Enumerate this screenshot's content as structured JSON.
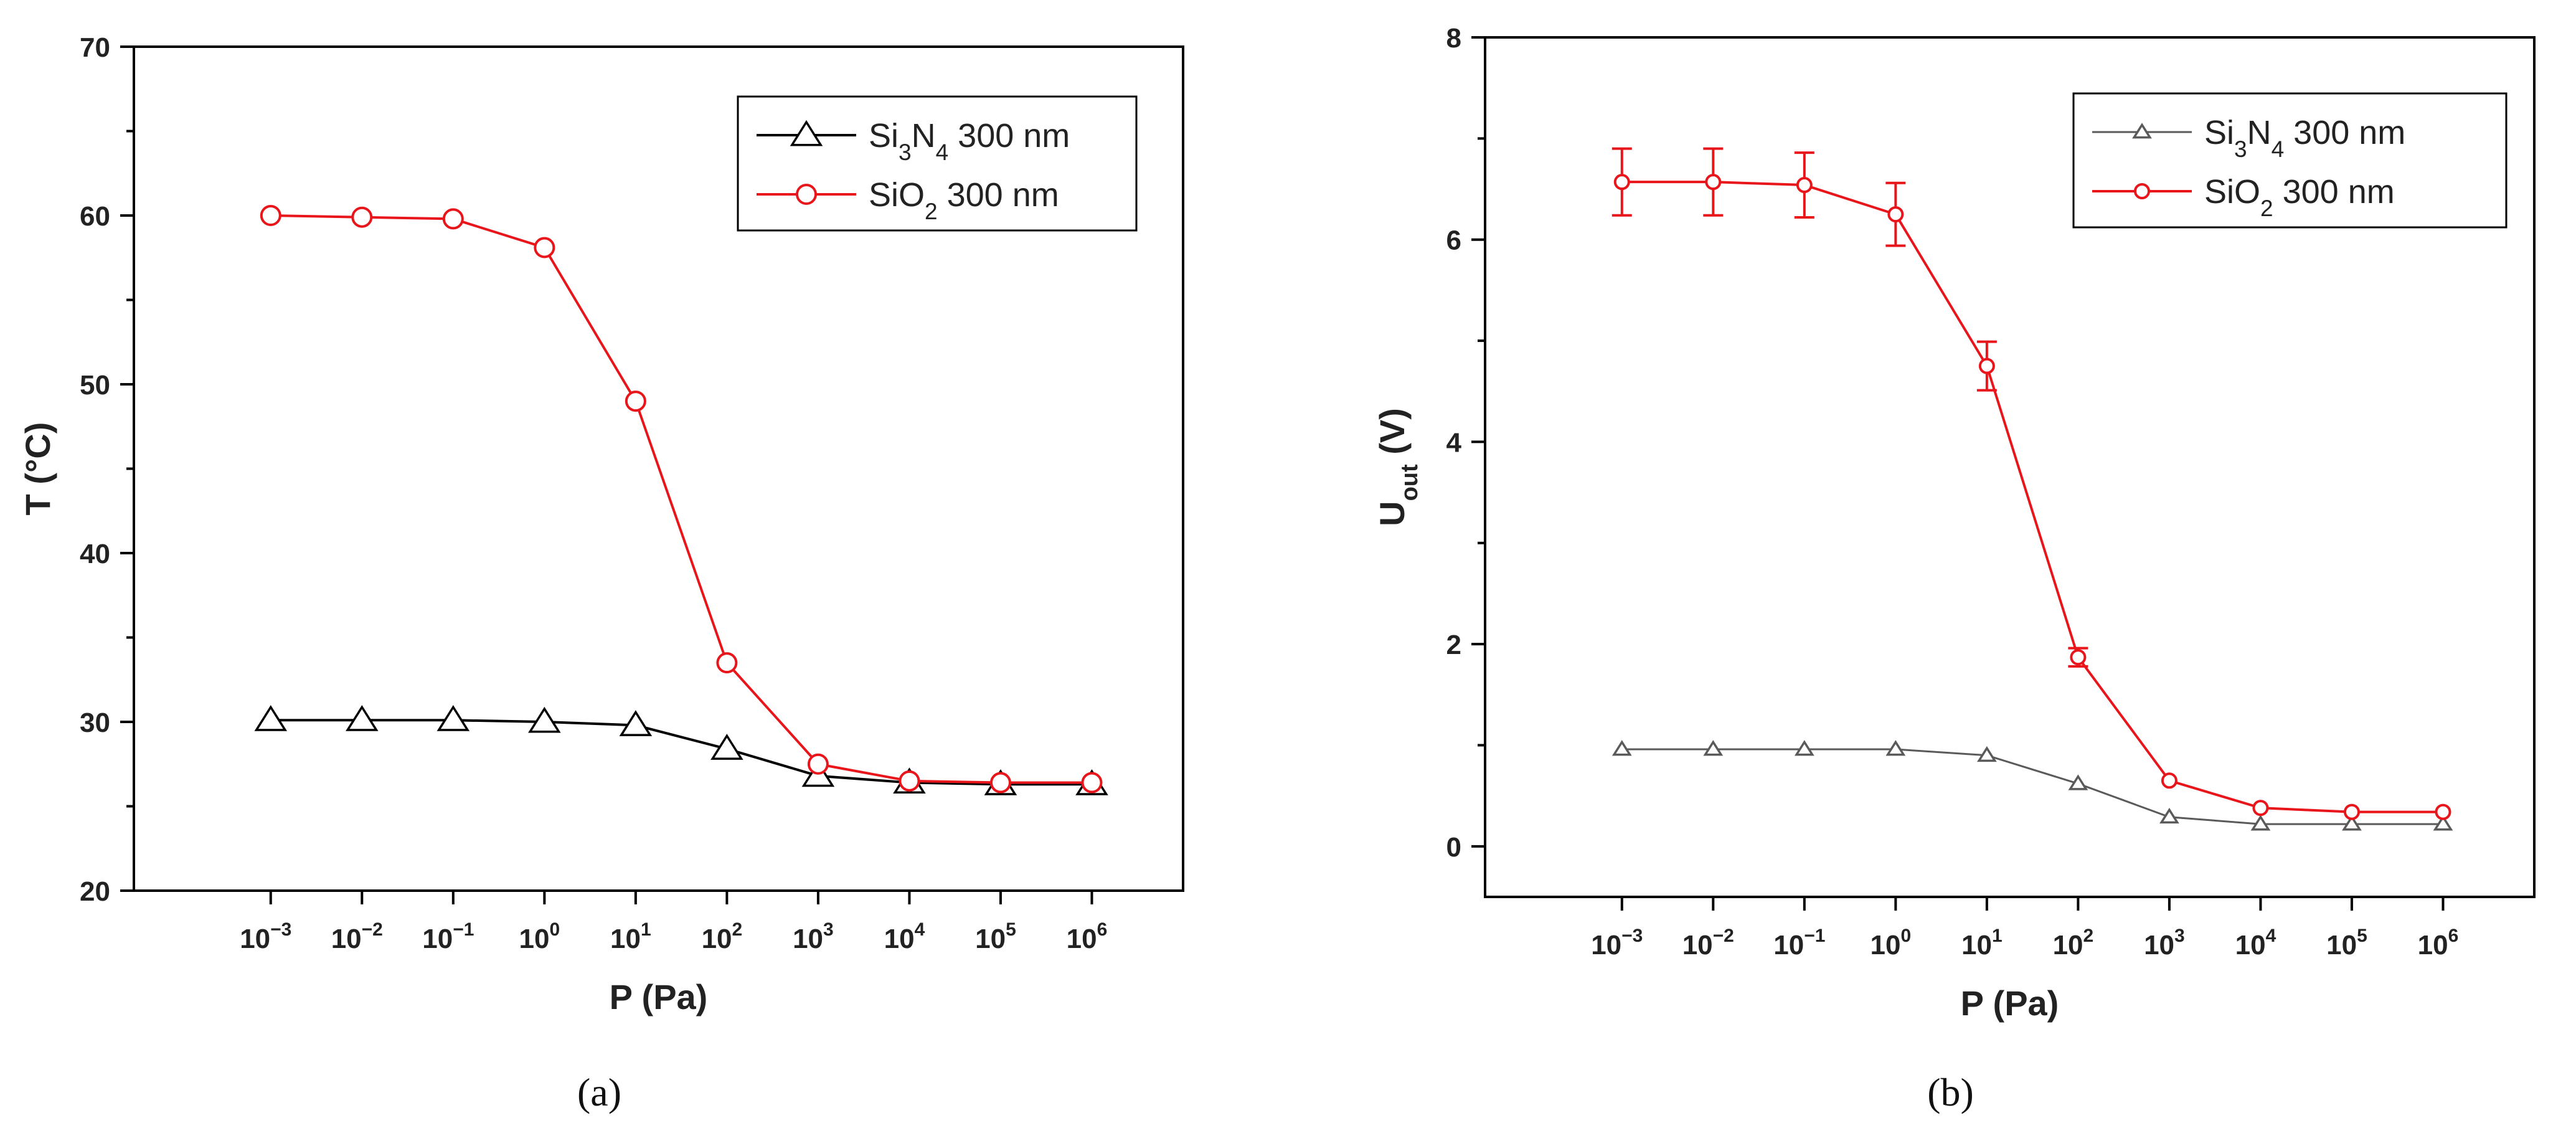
{
  "chart_data": [
    {
      "type": "line",
      "caption": "(a)",
      "xlabel": "P (Pa)",
      "ylabel": "T (°C)",
      "x_scale": "log",
      "x": [
        -3,
        -2,
        -1,
        0,
        1,
        2,
        3,
        4,
        5,
        6
      ],
      "x_tick_labels": [
        {
          "base": "10",
          "exp": "−3"
        },
        {
          "base": "10",
          "exp": "−2"
        },
        {
          "base": "10",
          "exp": "−1"
        },
        {
          "base": "10",
          "exp": "0"
        },
        {
          "base": "10",
          "exp": "1"
        },
        {
          "base": "10",
          "exp": "2"
        },
        {
          "base": "10",
          "exp": "3"
        },
        {
          "base": "10",
          "exp": "4"
        },
        {
          "base": "10",
          "exp": "5"
        },
        {
          "base": "10",
          "exp": "6"
        }
      ],
      "xlim": [
        -4.5,
        7.0
      ],
      "ylim": [
        20,
        70
      ],
      "y_ticks": [
        20,
        30,
        40,
        50,
        60,
        70
      ],
      "y_tick_labels": [
        "20",
        "30",
        "40",
        "50",
        "60",
        "70"
      ],
      "legend_position": "top-right",
      "series": [
        {
          "name_parts": [
            [
              "Si",
              ""
            ],
            [
              "3",
              "sub"
            ],
            [
              "N",
              ""
            ],
            [
              "4",
              "sub"
            ],
            [
              " 300 nm",
              ""
            ]
          ],
          "color": "#000000",
          "marker": "triangle",
          "values": [
            30.1,
            30.1,
            30.1,
            30.0,
            29.8,
            28.4,
            26.8,
            26.4,
            26.3,
            26.3
          ]
        },
        {
          "name_parts": [
            [
              "SiO",
              ""
            ],
            [
              "2",
              "sub"
            ],
            [
              "  300 nm",
              ""
            ]
          ],
          "color": "#e8151b",
          "marker": "circle",
          "values": [
            60.0,
            59.9,
            59.8,
            58.1,
            49.0,
            33.5,
            27.5,
            26.5,
            26.4,
            26.4
          ]
        }
      ]
    },
    {
      "type": "line",
      "caption": "(b)",
      "xlabel": "P (Pa)",
      "ylabel_parts": [
        [
          "U",
          ""
        ],
        [
          "out",
          "sub"
        ],
        [
          " (V)",
          ""
        ]
      ],
      "x_scale": "log",
      "x": [
        -3,
        -2,
        -1,
        0,
        1,
        2,
        3,
        4,
        5,
        6
      ],
      "x_tick_labels": [
        {
          "base": "10",
          "exp": "−3"
        },
        {
          "base": "10",
          "exp": "−2"
        },
        {
          "base": "10",
          "exp": "−1"
        },
        {
          "base": "10",
          "exp": "0"
        },
        {
          "base": "10",
          "exp": "1"
        },
        {
          "base": "10",
          "exp": "2"
        },
        {
          "base": "10",
          "exp": "3"
        },
        {
          "base": "10",
          "exp": "4"
        },
        {
          "base": "10",
          "exp": "5"
        },
        {
          "base": "10",
          "exp": "6"
        }
      ],
      "xlim": [
        -4.5,
        7.0
      ],
      "ylim": [
        -0.5,
        8
      ],
      "y_ticks": [
        0,
        2,
        4,
        6,
        8
      ],
      "y_tick_labels": [
        "0",
        "2",
        "4",
        "6",
        "8"
      ],
      "legend_position": "top-right",
      "series": [
        {
          "name_parts": [
            [
              "Si",
              ""
            ],
            [
              "3",
              "sub"
            ],
            [
              "N",
              ""
            ],
            [
              "4",
              "sub"
            ],
            [
              " 300 nm",
              ""
            ]
          ],
          "color": "#5a5a5a",
          "marker": "triangle",
          "values": [
            0.96,
            0.96,
            0.96,
            0.96,
            0.9,
            0.62,
            0.29,
            0.22,
            0.22,
            0.22
          ],
          "errors": [
            0.02,
            0.02,
            0.02,
            0.02,
            0.03,
            0.03,
            0.03,
            0.02,
            0.02,
            0.02
          ]
        },
        {
          "name_parts": [
            [
              "SiO",
              ""
            ],
            [
              "2",
              "sub"
            ],
            [
              "  300 nm",
              ""
            ]
          ],
          "color": "#e8151b",
          "marker": "circle",
          "values": [
            6.57,
            6.57,
            6.54,
            6.25,
            4.75,
            1.87,
            0.65,
            0.38,
            0.34,
            0.34
          ],
          "errors": [
            0.33,
            0.33,
            0.32,
            0.31,
            0.24,
            0.09,
            0.04,
            0.03,
            0.03,
            0.03
          ]
        }
      ]
    }
  ]
}
